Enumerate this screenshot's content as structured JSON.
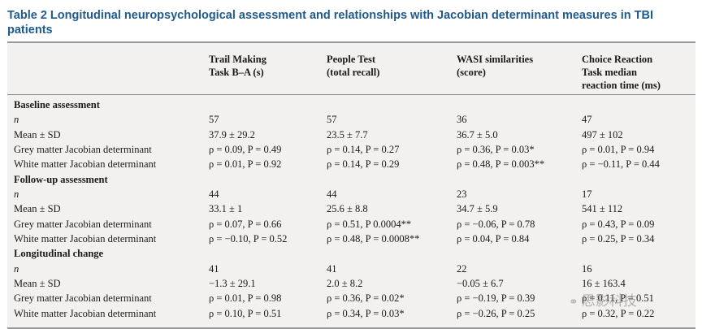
{
  "caption": {
    "label": "Table 2",
    "text": "Longitudinal neuropsychological assessment and relationships with Jacobian determinant measures in TBI patients"
  },
  "columns": [
    [
      "Trail Making",
      "Task B–A (s)"
    ],
    [
      "People Test",
      "(total recall)"
    ],
    [
      "WASI similarities",
      "(score)"
    ],
    [
      "Choice Reaction",
      "Task median",
      "reaction time (ms)"
    ]
  ],
  "rows": [
    {
      "type": "section",
      "cells": [
        "Baseline assessment",
        "",
        "",
        "",
        ""
      ]
    },
    {
      "type": "n",
      "cells": [
        "n",
        "57",
        "57",
        "36",
        "47"
      ]
    },
    {
      "type": "data",
      "cells": [
        "Mean ± SD",
        "37.9 ± 29.2",
        "23.5 ± 7.7",
        "36.7 ± 5.0",
        "497 ± 102"
      ]
    },
    {
      "type": "data",
      "cells": [
        "Grey matter Jacobian determinant",
        "ρ = 0.09, P = 0.49",
        "ρ = 0.14, P = 0.27",
        "ρ = 0.36, P = 0.03*",
        "ρ = 0.01, P = 0.94"
      ]
    },
    {
      "type": "data",
      "cells": [
        "White matter Jacobian determinant",
        "ρ = 0.01, P = 0.92",
        "ρ = 0.14, P = 0.29",
        "ρ = 0.48, P = 0.003**",
        "ρ = −0.11, P = 0.44"
      ]
    },
    {
      "type": "section",
      "cells": [
        "Follow-up assessment",
        "",
        "",
        "",
        ""
      ]
    },
    {
      "type": "n",
      "cells": [
        "n",
        "44",
        "44",
        "23",
        "17"
      ]
    },
    {
      "type": "data",
      "cells": [
        "Mean ± SD",
        "33.1 ± 1",
        "25.6 ± 8.8",
        "34.7 ± 5.9",
        "541 ± 112"
      ]
    },
    {
      "type": "data",
      "cells": [
        "Grey matter Jacobian determinant",
        "ρ = 0.07, P = 0.66",
        "ρ = 0.51, P 0.0004**",
        "ρ = −0.06, P = 0.78",
        "ρ = 0.43, P = 0.09"
      ]
    },
    {
      "type": "data",
      "cells": [
        "White matter Jacobian determinant",
        "ρ = −0.10, P = 0.52",
        "ρ = 0.48, P = 0.0008**",
        "ρ = 0.04, P = 0.84",
        "ρ = 0.25, P = 0.34"
      ]
    },
    {
      "type": "section",
      "cells": [
        "Longitudinal change",
        "",
        "",
        "",
        ""
      ]
    },
    {
      "type": "n",
      "cells": [
        "n",
        "41",
        "41",
        "22",
        "16"
      ]
    },
    {
      "type": "data",
      "cells": [
        "Mean ± SD",
        "−1.3 ± 29.1",
        "2.0 ± 8.2",
        "−0.05 ± 6.7",
        "16 ± 163.4"
      ]
    },
    {
      "type": "data",
      "cells": [
        "Grey matter Jacobian determinant",
        "ρ = 0.01, P = 0.98",
        "ρ = 0.36, P = 0.02*",
        "ρ = −0.19, P = 0.39",
        "ρ = 0.11, P = 0.51"
      ]
    },
    {
      "type": "data",
      "cells": [
        "White matter Jacobian determinant",
        "ρ = 0.10, P = 0.51",
        "ρ = 0.34, P = 0.03*",
        "ρ = −0.26, P = 0.25",
        "ρ = 0.32, P = 0.22"
      ]
    }
  ],
  "watermark": {
    "text": "思影科技",
    "icon": "wechat-icon"
  }
}
